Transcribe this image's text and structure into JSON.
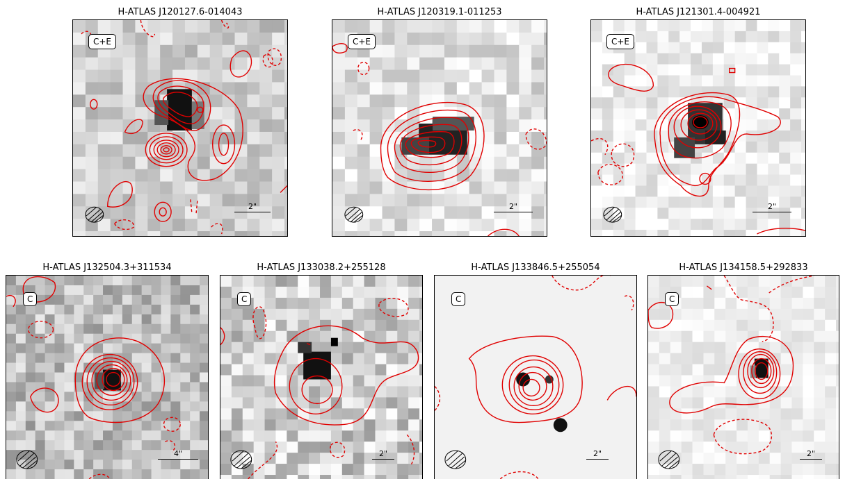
{
  "panels": [
    {
      "title": "H-ATLAS J120127.6-014043",
      "tag": "C+E",
      "scale": "2\""
    },
    {
      "title": "H-ATLAS J120319.1-011253",
      "tag": "C+E",
      "scale": "2\""
    },
    {
      "title": "H-ATLAS J121301.4-004921",
      "tag": "C+E",
      "scale": "2\""
    },
    {
      "title": "H-ATLAS J132504.3+311534",
      "tag": "C",
      "scale": "4\""
    },
    {
      "title": "H-ATLAS J133038.2+255128",
      "tag": "C",
      "scale": "2\""
    },
    {
      "title": "H-ATLAS J133846.5+255054",
      "tag": "C",
      "scale": "2\""
    },
    {
      "title": "H-ATLAS J134158.5+292833",
      "tag": "C",
      "scale": "2\""
    }
  ],
  "colors": {
    "contour": "#e00000",
    "frame": "#000000"
  }
}
